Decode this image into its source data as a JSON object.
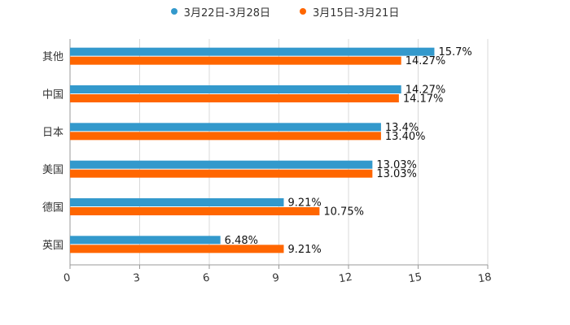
{
  "chart_data": {
    "type": "bar",
    "orientation": "horizontal",
    "categories": [
      "其他",
      "中国",
      "日本",
      "美国",
      "德国",
      "英国"
    ],
    "series": [
      {
        "name": "3月22日-3月28日",
        "color": "#3399CC",
        "values": [
          15.7,
          14.27,
          13.4,
          13.03,
          9.21,
          6.48
        ],
        "labels": [
          "15.7%",
          "14.27%",
          "13.4%",
          "13.03%",
          "9.21%",
          "6.48%"
        ]
      },
      {
        "name": "3月15日-3月21日",
        "color": "#FF6600",
        "values": [
          14.27,
          14.17,
          13.4,
          13.03,
          10.75,
          9.21
        ],
        "labels": [
          "14.27%",
          "14.17%",
          "13.40%",
          "13.03%",
          "10.75%",
          "9.21%"
        ]
      }
    ],
    "xlim": [
      0,
      18
    ],
    "x_ticks": [
      "0",
      "3",
      "6",
      "9",
      "12",
      "15",
      "18"
    ],
    "grid": true,
    "legend_position": "top-center"
  }
}
